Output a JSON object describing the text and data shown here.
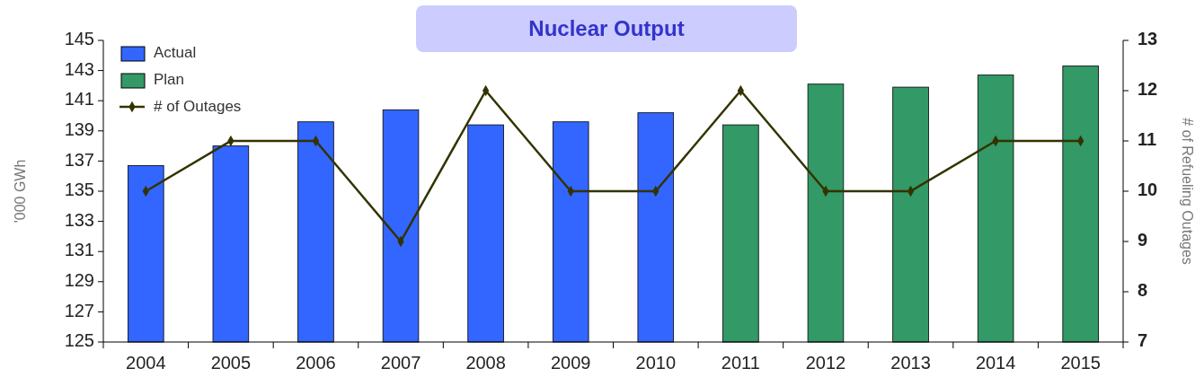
{
  "chart_data": {
    "type": "bar",
    "title": "Nuclear Output",
    "ylabel": "'000 GWh",
    "y2label": "# of Refueling Outages",
    "categories": [
      "2004",
      "2005",
      "2006",
      "2007",
      "2008",
      "2009",
      "2010",
      "2011",
      "2012",
      "2013",
      "2014",
      "2015"
    ],
    "series": [
      {
        "name": "Actual",
        "color": "#3366ff",
        "values": [
          136.7,
          138.0,
          139.6,
          140.4,
          139.4,
          139.6,
          140.2,
          null,
          null,
          null,
          null,
          null
        ]
      },
      {
        "name": "Plan",
        "color": "#339966",
        "values": [
          null,
          null,
          null,
          null,
          null,
          null,
          null,
          139.4,
          142.1,
          141.9,
          142.7,
          143.3
        ]
      },
      {
        "name": "# of Outages",
        "type": "line",
        "axis": "y2",
        "color": "#333300",
        "marker": "diamond",
        "values": [
          10,
          11,
          11,
          9,
          12,
          10,
          10,
          12,
          10,
          10,
          11,
          11
        ]
      }
    ],
    "ylim": [
      125,
      145
    ],
    "yticks": [
      125,
      127,
      129,
      131,
      133,
      135,
      137,
      139,
      141,
      143,
      145
    ],
    "y2lim": [
      7,
      13
    ],
    "y2ticks": [
      7,
      8,
      9,
      10,
      11,
      12,
      13
    ],
    "stacked": true,
    "grid": false,
    "legend": "top left"
  }
}
